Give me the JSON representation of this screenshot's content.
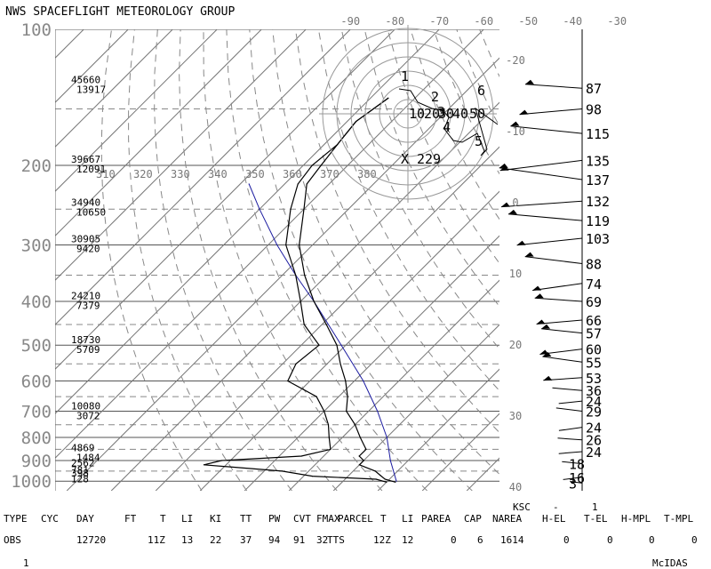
{
  "header": {
    "title": "NWS SPACEFLIGHT METEOROLOGY GROUP"
  },
  "chart_data": {
    "type": "skew-t",
    "title": "NWS SPACEFLIGHT METEOROLOGY GROUP",
    "pressure_ticks": [
      "100",
      "200",
      "300",
      "400",
      "500",
      "600",
      "700",
      "800",
      "900",
      "1000"
    ],
    "temperature_ticks_top": [
      "-90",
      "-80",
      "-70",
      "-60",
      "-50",
      "-40",
      "-30"
    ],
    "theta_labels": [
      "310",
      "320",
      "330",
      "340",
      "350",
      "360",
      "370",
      "380"
    ],
    "right_axis_ticks": [
      "-20",
      "-10",
      "0",
      "10",
      "20",
      "30",
      "40"
    ],
    "height_labels": [
      {
        "p": 132,
        "ft": "45660",
        "m": "13917"
      },
      {
        "p": 198,
        "ft": "39667",
        "m": "12091"
      },
      {
        "p": 247,
        "ft": "34940",
        "m": "10650"
      },
      {
        "p": 297,
        "ft": "30905",
        "m": "9420"
      },
      {
        "p": 397,
        "ft": "24210",
        "m": "7379"
      },
      {
        "p": 497,
        "ft": "18730",
        "m": "5709"
      },
      {
        "p": 697,
        "ft": "10080",
        "m": "3072"
      },
      {
        "p": 862,
        "ft": "4869",
        "m": "1484"
      },
      {
        "p": 932,
        "ft": "2562",
        "m": ""
      },
      {
        "p": 965,
        "ft": "781",
        "m": ""
      },
      {
        "p": 982,
        "ft": "398",
        "m": ""
      },
      {
        "p": 1010,
        "ft": "128",
        "m": ""
      }
    ],
    "temperature_profile": [
      {
        "p": 1005,
        "t": 22
      },
      {
        "p": 990,
        "t": 19
      },
      {
        "p": 970,
        "t": 17
      },
      {
        "p": 950,
        "t": 15
      },
      {
        "p": 920,
        "t": 10
      },
      {
        "p": 900,
        "t": 10
      },
      {
        "p": 880,
        "t": 8
      },
      {
        "p": 850,
        "t": 8
      },
      {
        "p": 800,
        "t": 4
      },
      {
        "p": 750,
        "t": 0
      },
      {
        "p": 700,
        "t": -5
      },
      {
        "p": 650,
        "t": -8
      },
      {
        "p": 600,
        "t": -12
      },
      {
        "p": 550,
        "t": -17
      },
      {
        "p": 500,
        "t": -22
      },
      {
        "p": 450,
        "t": -29
      },
      {
        "p": 400,
        "t": -37
      },
      {
        "p": 350,
        "t": -45
      },
      {
        "p": 300,
        "t": -53
      },
      {
        "p": 250,
        "t": -60
      },
      {
        "p": 220,
        "t": -65
      },
      {
        "p": 200,
        "t": -66
      },
      {
        "p": 180,
        "t": -67
      },
      {
        "p": 160,
        "t": -68
      },
      {
        "p": 142,
        "t": -66
      }
    ],
    "dewpoint_profile": [
      {
        "p": 1005,
        "t": 20
      },
      {
        "p": 990,
        "t": 17
      },
      {
        "p": 975,
        "t": 2
      },
      {
        "p": 950,
        "t": -6
      },
      {
        "p": 920,
        "t": -25
      },
      {
        "p": 900,
        "t": -22
      },
      {
        "p": 880,
        "t": -5
      },
      {
        "p": 850,
        "t": 0
      },
      {
        "p": 800,
        "t": -3
      },
      {
        "p": 750,
        "t": -6
      },
      {
        "p": 700,
        "t": -10
      },
      {
        "p": 650,
        "t": -15
      },
      {
        "p": 600,
        "t": -25
      },
      {
        "p": 550,
        "t": -27
      },
      {
        "p": 500,
        "t": -26
      },
      {
        "p": 450,
        "t": -34
      },
      {
        "p": 400,
        "t": -40
      },
      {
        "p": 350,
        "t": -47
      },
      {
        "p": 300,
        "t": -56
      },
      {
        "p": 250,
        "t": -63
      },
      {
        "p": 220,
        "t": -67
      },
      {
        "p": 200,
        "t": -68
      },
      {
        "p": 180,
        "t": -67
      },
      {
        "p": 160,
        "t": -68
      },
      {
        "p": 142,
        "t": -66
      }
    ],
    "parcel_profile": [
      {
        "p": 1000,
        "t": 22
      },
      {
        "p": 900,
        "t": 16
      },
      {
        "p": 800,
        "t": 10
      },
      {
        "p": 700,
        "t": 2
      },
      {
        "p": 600,
        "t": -8
      },
      {
        "p": 500,
        "t": -21
      },
      {
        "p": 400,
        "t": -37
      },
      {
        "p": 350,
        "t": -47
      },
      {
        "p": 300,
        "t": -58
      },
      {
        "p": 250,
        "t": -70
      },
      {
        "p": 220,
        "t": -78
      }
    ],
    "wind_speeds": [
      {
        "p": 135,
        "kt": "87"
      },
      {
        "p": 150,
        "kt": "98"
      },
      {
        "p": 170,
        "kt": "115"
      },
      {
        "p": 195,
        "kt": "135"
      },
      {
        "p": 215,
        "kt": "137"
      },
      {
        "p": 240,
        "kt": "132"
      },
      {
        "p": 265,
        "kt": "119"
      },
      {
        "p": 290,
        "kt": "103"
      },
      {
        "p": 330,
        "kt": "88"
      },
      {
        "p": 365,
        "kt": "74"
      },
      {
        "p": 400,
        "kt": "69"
      },
      {
        "p": 440,
        "kt": "66"
      },
      {
        "p": 470,
        "kt": "57"
      },
      {
        "p": 510,
        "kt": "60"
      },
      {
        "p": 545,
        "kt": "55"
      },
      {
        "p": 590,
        "kt": "53"
      },
      {
        "p": 630,
        "kt": "36"
      },
      {
        "p": 665,
        "kt": "24"
      },
      {
        "p": 700,
        "kt": "29"
      },
      {
        "p": 760,
        "kt": "24"
      },
      {
        "p": 810,
        "kt": "26"
      },
      {
        "p": 860,
        "kt": "24"
      },
      {
        "p": 915,
        "kt": "18"
      },
      {
        "p": 980,
        "kt": "16"
      },
      {
        "p": 1010,
        "kt": "3"
      }
    ],
    "hodograph_labels": [
      "1",
      "2",
      "3",
      "4",
      "5",
      "6",
      "10",
      "20",
      "30",
      "40",
      "50",
      "229"
    ],
    "station": "KSC",
    "station_marker": "1",
    "station_dash": "-"
  },
  "table": {
    "headers": [
      "TYPE",
      "CYC",
      "DAY",
      "FT",
      "T",
      "LI",
      "KI",
      "TT",
      "PW",
      "CVT",
      "FMAX",
      "PARCEL",
      "T",
      "LI",
      "PAREA",
      "CAP",
      "NAREA",
      "H-EL",
      "T-EL",
      "H-MPL",
      "T-MPL"
    ],
    "values": [
      "OBS",
      "",
      "12720",
      "",
      "11Z",
      "13",
      "22",
      "37",
      "94",
      "91",
      "32",
      "TTS",
      "12Z",
      "12",
      "0",
      "6",
      "1614",
      "0",
      "0",
      "0",
      "0"
    ]
  },
  "footer": {
    "left": "1",
    "right": "McIDAS"
  }
}
